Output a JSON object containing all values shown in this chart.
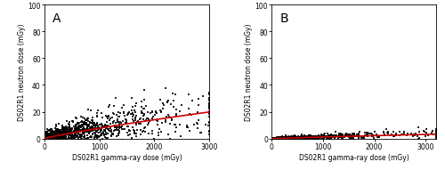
{
  "panel_A": {
    "label": "A",
    "n": 1179,
    "gamma_range": [
      0,
      3000
    ],
    "neutron_range": [
      0,
      100
    ],
    "xticks": [
      0,
      1000,
      2000,
      3000
    ],
    "yticks": [
      0,
      20,
      40,
      60,
      80,
      100
    ],
    "xlabel": "DS02R1 gamma-ray dose (mGy)",
    "ylabel": "DS02R1 neutron dose (mGy)",
    "trend_color": "#cc0000",
    "dot_color": "#000000",
    "dot_size": 4,
    "seed": 42,
    "curve_power": 0.85,
    "curve_scale": 0.022
  },
  "panel_B": {
    "label": "B",
    "n": 689,
    "gamma_range": [
      0,
      3200
    ],
    "neutron_range": [
      0,
      100
    ],
    "xticks": [
      0,
      1000,
      2000,
      3000
    ],
    "yticks": [
      0,
      20,
      40,
      60,
      80,
      100
    ],
    "xlabel": "DS02R1 gamma-ray dose (mGy)",
    "ylabel": "DS02R1 neutron dose (mGy)",
    "trend_color": "#cc0000",
    "dot_color": "#000000",
    "dot_size": 4,
    "seed": 99,
    "curve_power": 0.6,
    "curve_scale": 0.0035
  },
  "background_color": "#ffffff",
  "figure_width": 5.0,
  "figure_height": 2.01
}
